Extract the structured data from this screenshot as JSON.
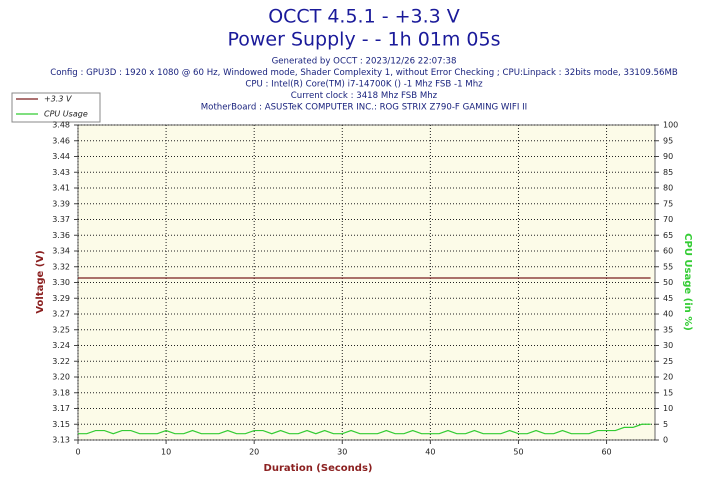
{
  "chart_data": {
    "type": "line",
    "title": "OCCT 4.5.1 - +3.3 V",
    "subtitle": "Power Supply -  - 1h 01m 05s",
    "info_lines": [
      "Generated by OCCT : 2023/12/26 22:07:38",
      "Config : GPU3D : 1920 x 1080 @ 60 Hz, Windowed mode, Shader Complexity 1, without Error Checking ; CPU:Linpack : 32bits mode, 33109.56MB",
      "CPU : Intel(R) Core(TM) i7-14700K () -1 Mhz FSB -1 Mhz",
      "Current clock : 3418 Mhz FSB  Mhz",
      "MotherBoard : ASUSTeK COMPUTER INC.: ROG STRIX Z790-F GAMING WIFI II"
    ],
    "xlabel": "Duration (Seconds)",
    "ylabel": "Voltage (V)",
    "y2label": "CPU Usage (in %)",
    "x": [
      0,
      1,
      2,
      3,
      4,
      5,
      6,
      7,
      8,
      9,
      10,
      11,
      12,
      13,
      14,
      15,
      16,
      17,
      18,
      19,
      20,
      21,
      22,
      23,
      24,
      25,
      26,
      27,
      28,
      29,
      30,
      31,
      32,
      33,
      34,
      35,
      36,
      37,
      38,
      39,
      40,
      41,
      42,
      43,
      44,
      45,
      46,
      47,
      48,
      49,
      50,
      51,
      52,
      53,
      54,
      55,
      56,
      57,
      58,
      59,
      60,
      61,
      62,
      63,
      64,
      65
    ],
    "series": [
      {
        "name": "+3.3 V",
        "color": "#7a1f1f",
        "axis": "y",
        "values": [
          3.31,
          3.31,
          3.31,
          3.31,
          3.31,
          3.31,
          3.31,
          3.31,
          3.31,
          3.31,
          3.31,
          3.31,
          3.31,
          3.31,
          3.31,
          3.31,
          3.31,
          3.31,
          3.31,
          3.31,
          3.31,
          3.31,
          3.31,
          3.31,
          3.31,
          3.31,
          3.31,
          3.31,
          3.31,
          3.31,
          3.31,
          3.31,
          3.31,
          3.31,
          3.31,
          3.31,
          3.31,
          3.31,
          3.31,
          3.31,
          3.31,
          3.31,
          3.31,
          3.31,
          3.31,
          3.31,
          3.31,
          3.31,
          3.31,
          3.31,
          3.31,
          3.31,
          3.31,
          3.31,
          3.31,
          3.31,
          3.31,
          3.31,
          3.31,
          3.31,
          3.31,
          3.31,
          3.31,
          3.31,
          3.31,
          3.31
        ]
      },
      {
        "name": "CPU Usage",
        "color": "#33cc33",
        "axis": "y2",
        "values": [
          2,
          2,
          3,
          3,
          2,
          3,
          3,
          2,
          2,
          2,
          3,
          2,
          2,
          3,
          2,
          2,
          2,
          3,
          2,
          2,
          3,
          3,
          2,
          3,
          2,
          2,
          3,
          2,
          3,
          2,
          2,
          3,
          2,
          2,
          2,
          3,
          2,
          2,
          3,
          2,
          2,
          2,
          3,
          2,
          2,
          3,
          2,
          2,
          2,
          3,
          2,
          2,
          3,
          2,
          2,
          3,
          2,
          2,
          2,
          3,
          3,
          3,
          4,
          4,
          5,
          5
        ]
      }
    ],
    "xlim": [
      0,
      65.5
    ],
    "xticks": [
      0,
      10,
      20,
      30,
      40,
      50,
      60
    ],
    "ylim": [
      3.13,
      3.48
    ],
    "yticks": [
      {
        "value": 3.13,
        "label": "3.13"
      },
      {
        "value": 3.1475,
        "label": "3.15"
      },
      {
        "value": 3.165,
        "label": "3.17"
      },
      {
        "value": 3.1825,
        "label": "3.18"
      },
      {
        "value": 3.2,
        "label": "3.20"
      },
      {
        "value": 3.2175,
        "label": "3.22"
      },
      {
        "value": 3.235,
        "label": "3.24"
      },
      {
        "value": 3.2525,
        "label": "3.25"
      },
      {
        "value": 3.27,
        "label": "3.27"
      },
      {
        "value": 3.2875,
        "label": "3.29"
      },
      {
        "value": 3.305,
        "label": "3.30"
      },
      {
        "value": 3.3225,
        "label": "3.32"
      },
      {
        "value": 3.34,
        "label": "3.34"
      },
      {
        "value": 3.3575,
        "label": "3.36"
      },
      {
        "value": 3.375,
        "label": "3.37"
      },
      {
        "value": 3.3925,
        "label": "3.39"
      },
      {
        "value": 3.41,
        "label": "3.41"
      },
      {
        "value": 3.4275,
        "label": "3.43"
      },
      {
        "value": 3.445,
        "label": "3.44"
      },
      {
        "value": 3.4625,
        "label": "3.46"
      },
      {
        "value": 3.48,
        "label": "3.48"
      }
    ],
    "y2lim": [
      0,
      100
    ],
    "y2ticks": [
      0,
      5,
      10,
      15,
      20,
      25,
      30,
      35,
      40,
      45,
      50,
      55,
      60,
      65,
      70,
      75,
      80,
      85,
      90,
      95,
      100
    ],
    "grid": true,
    "legend": "upper left"
  }
}
